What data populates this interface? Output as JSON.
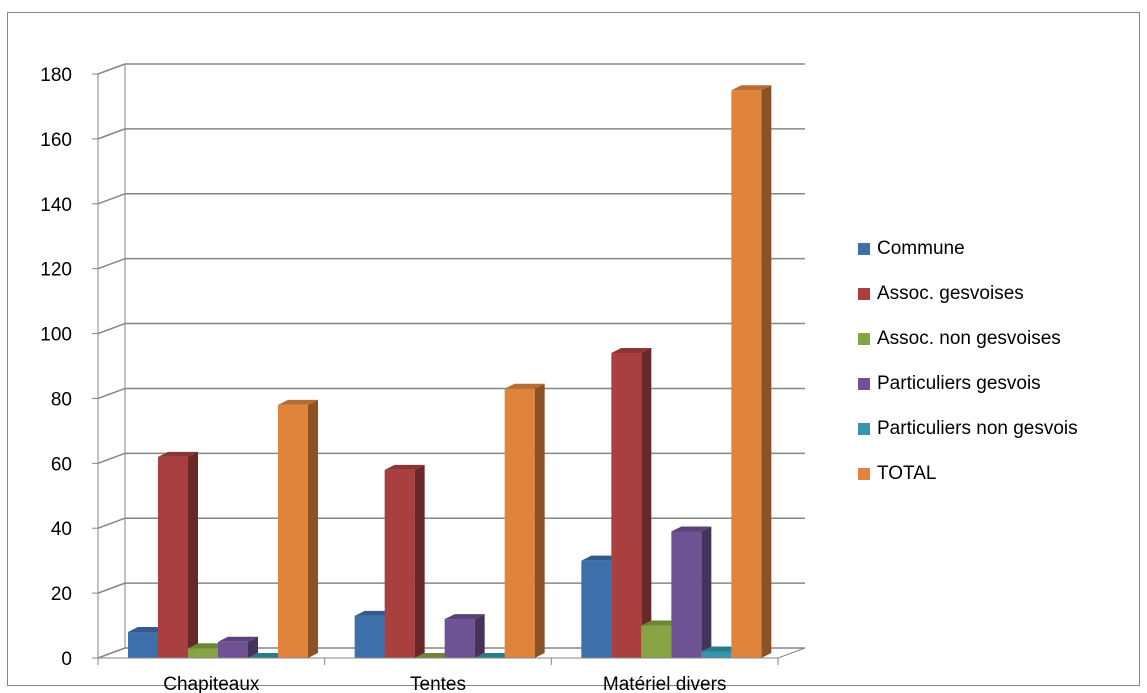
{
  "chart_data": {
    "type": "bar",
    "categories": [
      "Chapiteaux",
      "Tentes",
      "Matériel divers"
    ],
    "series": [
      {
        "name": "Commune",
        "values": [
          8,
          13,
          30
        ],
        "color": "#3D6FAB"
      },
      {
        "name": "Assoc.  gesvoises",
        "values": [
          62,
          58,
          94
        ],
        "color": "#A9403F"
      },
      {
        "name": "Assoc.  non gesvoises",
        "values": [
          3,
          0,
          10
        ],
        "color": "#86A443"
      },
      {
        "name": "Particuliers gesvois",
        "values": [
          5,
          12,
          39
        ],
        "color": "#6F5293"
      },
      {
        "name": "Particuliers non gesvois",
        "values": [
          0,
          0,
          2
        ],
        "color": "#3596AE"
      },
      {
        "name": "TOTAL",
        "values": [
          78,
          83,
          175
        ],
        "color": "#E0843C"
      }
    ],
    "yticks": [
      "0",
      "20",
      "40",
      "60",
      "80",
      "100",
      "120",
      "140",
      "160",
      "180"
    ],
    "ylim": [
      0,
      180
    ],
    "grid": true,
    "legend_position": "right",
    "title": "",
    "xlabel": "",
    "ylabel": ""
  }
}
